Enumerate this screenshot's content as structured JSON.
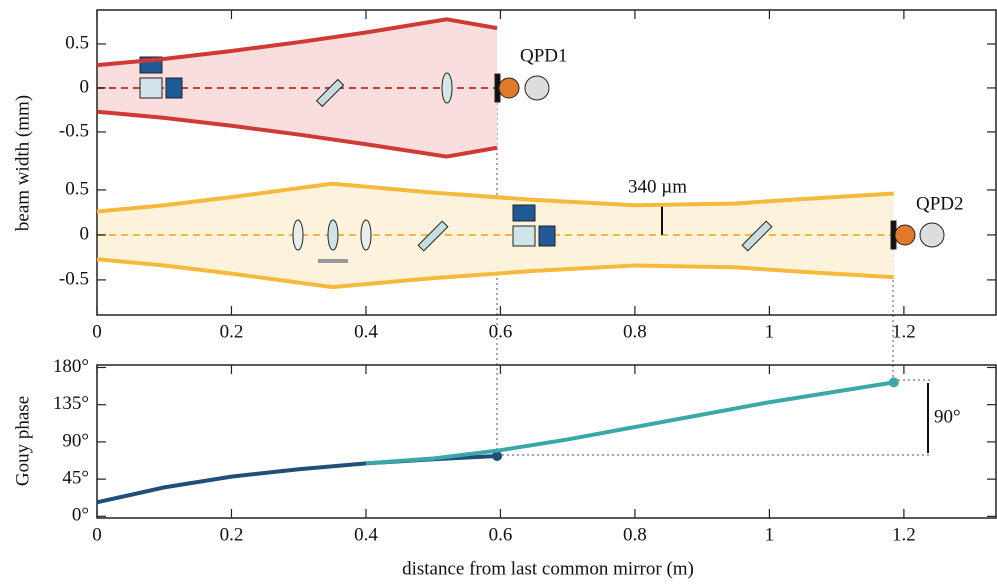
{
  "chart_data": [
    {
      "type": "line",
      "ylabel": "beam width (mm)",
      "annotation": "QPD1",
      "xlim": [
        0,
        1.337
      ],
      "ylim": [
        -0.91,
        0.886
      ],
      "yticks": [
        0.5,
        0,
        -0.5
      ],
      "fill": "#f9dedd",
      "series": [
        {
          "color": "#d03a34",
          "x": [
            0,
            0.1,
            0.2,
            0.3,
            0.4,
            0.52,
            0.595
          ],
          "values": [
            0.26,
            0.33,
            0.42,
            0.52,
            0.63,
            0.78,
            0.68
          ]
        },
        {
          "color": "#d03a34",
          "x": [
            0,
            0.1,
            0.2,
            0.3,
            0.4,
            0.52,
            0.595
          ],
          "values": [
            -0.27,
            -0.34,
            -0.43,
            -0.53,
            -0.64,
            -0.78,
            -0.68
          ]
        }
      ]
    },
    {
      "type": "line",
      "annotations": [
        "340 µm",
        "QPD2"
      ],
      "xlim": [
        0,
        1.337
      ],
      "ylim": [
        -0.89,
        0.744
      ],
      "yticks": [
        0.5,
        0,
        -0.5
      ],
      "fill": "#fdf3dc",
      "xticks": [
        0,
        0.2,
        0.4,
        0.6,
        0.8,
        1,
        1.2
      ],
      "series": [
        {
          "color": "#f6b93b",
          "x": [
            0,
            0.1,
            0.2,
            0.35,
            0.5,
            0.65,
            0.8,
            0.95,
            1.05,
            1.185
          ],
          "values": [
            0.26,
            0.33,
            0.42,
            0.57,
            0.47,
            0.39,
            0.33,
            0.35,
            0.4,
            0.46
          ]
        },
        {
          "color": "#f6b93b",
          "x": [
            0,
            0.1,
            0.2,
            0.35,
            0.5,
            0.65,
            0.8,
            0.95,
            1.05,
            1.185
          ],
          "values": [
            -0.27,
            -0.34,
            -0.43,
            -0.58,
            -0.48,
            -0.4,
            -0.34,
            -0.36,
            -0.41,
            -0.47
          ]
        }
      ]
    },
    {
      "type": "line",
      "ylabel": "Gouy phase",
      "xlabel": "distance from last common mirror (m)",
      "annotation": "90°",
      "xlim": [
        0,
        1.337
      ],
      "ylim": [
        -2,
        183
      ],
      "yticks": [
        {
          "value": 0,
          "label": "0°"
        },
        {
          "value": 45,
          "label": "45°"
        },
        {
          "value": 90,
          "label": "90°"
        },
        {
          "value": 135,
          "label": "135°"
        },
        {
          "value": 180,
          "label": "180°"
        }
      ],
      "xticks": [
        0,
        0.2,
        0.4,
        0.6,
        0.8,
        1,
        1.2
      ],
      "series": [
        {
          "color": "#1f4e79",
          "x": [
            0,
            0.1,
            0.2,
            0.3,
            0.4,
            0.5,
            0.595
          ],
          "values": [
            17,
            35,
            48,
            57,
            64,
            69,
            73
          ],
          "end_marker": true
        },
        {
          "color": "#3aa8a8",
          "x": [
            0.4,
            0.5,
            0.6,
            0.7,
            0.8,
            0.9,
            1,
            1.1,
            1.185
          ],
          "values": [
            64,
            70,
            80,
            93,
            108,
            123,
            138,
            151,
            162
          ],
          "end_marker": true
        }
      ]
    }
  ]
}
